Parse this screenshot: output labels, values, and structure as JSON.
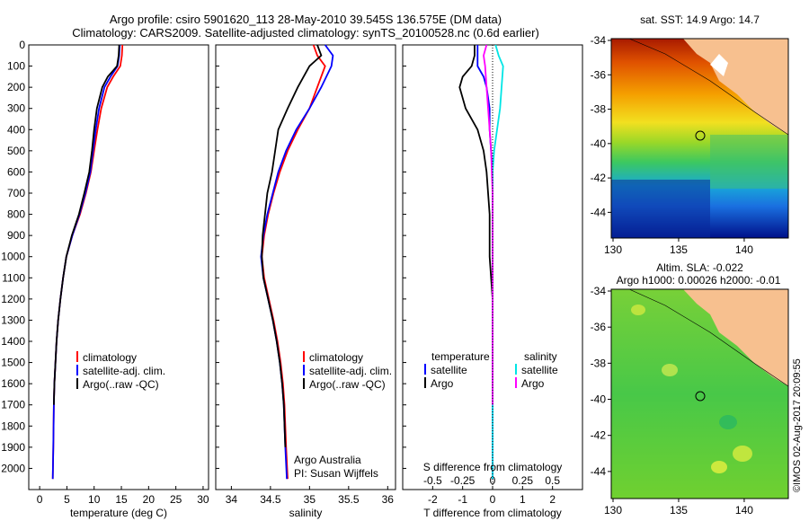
{
  "header": {
    "title_line1": "Argo profile: csiro 5901620_113 28-May-2010 39.545S 136.575E (DM data)",
    "title_line2": "Climatology: CARS2009. Satellite-adjusted climatology: synTS_20100528.nc (0.6d earlier)"
  },
  "colors": {
    "climatology": "#ff0000",
    "satellite": "#0000ff",
    "argo": "#000000",
    "sal_satellite": "#00e5e5",
    "sal_argo": "#ff00ff",
    "land": "#f7c08f"
  },
  "annotations": {
    "argo_australia": "Argo Australia",
    "pi": "PI: Susan Wijffels",
    "diff_xlabel_top": "S difference from climatology",
    "credit": "©IMOS 02-Aug-2017 20:09:55"
  },
  "legends": {
    "profile": [
      "climatology",
      "satellite-adj. clim.",
      "Argo(..raw -QC)"
    ],
    "diff_temperature_title": "temperature",
    "diff_salinity_title": "salinity",
    "diff_temperature": [
      "satellite",
      "Argo"
    ],
    "diff_salinity": [
      "satellite",
      "Argo"
    ]
  },
  "maps": {
    "sst_title": "sat. SST: 14.9 Argo: 14.7",
    "sla_title_line1": "Altim. SLA: -0.022",
    "sla_title_line2": "Argo h1000: 0.00026 h2000: -0.01",
    "lat_ticks": [
      "-34",
      "-36",
      "-38",
      "-40",
      "-42",
      "-44"
    ],
    "lon_ticks": [
      "130",
      "135",
      "140"
    ],
    "argo_position": {
      "lon": 136.575,
      "lat": -39.545
    }
  },
  "chart_data": [
    {
      "type": "line",
      "id": "temperature_profile",
      "xlabel": "temperature (deg C)",
      "ylabel": "",
      "xlim": [
        -2,
        31
      ],
      "ylim": [
        2100,
        0
      ],
      "xticks": [
        "0",
        "5",
        "10",
        "15",
        "20",
        "25",
        "30"
      ],
      "yticks": [
        "0",
        "100",
        "200",
        "300",
        "400",
        "500",
        "600",
        "700",
        "800",
        "900",
        "1000",
        "1100",
        "1200",
        "1300",
        "1400",
        "1500",
        "1600",
        "1700",
        "1800",
        "1900",
        "2000"
      ],
      "series": [
        {
          "name": "climatology",
          "x": [
            15.2,
            15.1,
            14.8,
            13.5,
            12.4,
            11.3,
            10.6,
            10.0,
            9.4,
            8.5,
            7.4,
            6.0,
            4.9,
            4.3,
            3.8,
            3.4,
            3.1,
            2.9,
            2.7,
            2.6,
            2.5,
            2.4
          ],
          "y": [
            0,
            50,
            100,
            150,
            200,
            300,
            400,
            500,
            600,
            700,
            800,
            900,
            1000,
            1100,
            1200,
            1300,
            1400,
            1500,
            1600,
            1700,
            1900,
            2050
          ]
        },
        {
          "name": "satellite-adj. clim.",
          "x": [
            14.7,
            14.6,
            14.3,
            13.0,
            11.9,
            10.9,
            10.3,
            9.8,
            9.3,
            8.4,
            7.3,
            6.0,
            4.9,
            4.3,
            3.8,
            3.4,
            3.1,
            2.9,
            2.7,
            2.6,
            2.5,
            2.4
          ],
          "y": [
            0,
            50,
            100,
            150,
            200,
            300,
            400,
            500,
            600,
            700,
            800,
            900,
            1000,
            1100,
            1200,
            1300,
            1400,
            1500,
            1600,
            1700,
            1900,
            2050
          ]
        },
        {
          "name": "Argo(..raw -QC)",
          "x": [
            14.6,
            14.5,
            14.2,
            12.5,
            11.5,
            10.5,
            10.0,
            9.6,
            9.1,
            8.2,
            7.2,
            5.9,
            4.9,
            4.3,
            3.8,
            3.4,
            3.1,
            2.9,
            2.7,
            2.6
          ],
          "y": [
            0,
            50,
            100,
            150,
            200,
            300,
            400,
            500,
            600,
            700,
            800,
            900,
            1000,
            1100,
            1200,
            1300,
            1400,
            1500,
            1600,
            1700
          ]
        }
      ]
    },
    {
      "type": "line",
      "id": "salinity_profile",
      "xlabel": "salinity",
      "ylabel": "",
      "xlim": [
        33.8,
        36.1
      ],
      "ylim": [
        2100,
        0
      ],
      "xticks": [
        "34",
        "34.5",
        "35",
        "35.5",
        "36"
      ],
      "series": [
        {
          "name": "climatology",
          "x": [
            35.05,
            35.1,
            35.2,
            35.1,
            35.0,
            34.85,
            34.72,
            34.62,
            34.54,
            34.47,
            34.42,
            34.39,
            34.42,
            34.48,
            34.54,
            34.59,
            34.63,
            34.66,
            34.68,
            34.7,
            34.72
          ],
          "y": [
            0,
            50,
            100,
            200,
            300,
            400,
            500,
            600,
            700,
            800,
            900,
            1000,
            1100,
            1200,
            1300,
            1400,
            1500,
            1600,
            1700,
            1900,
            2050
          ]
        },
        {
          "name": "satellite-adj. clim.",
          "x": [
            35.2,
            35.3,
            35.28,
            35.15,
            35.0,
            34.83,
            34.7,
            34.6,
            34.53,
            34.46,
            34.41,
            34.38,
            34.41,
            34.47,
            34.53,
            34.58,
            34.62,
            34.65,
            34.67,
            34.69,
            34.71
          ],
          "y": [
            0,
            50,
            100,
            200,
            300,
            400,
            500,
            600,
            700,
            800,
            900,
            1000,
            1100,
            1200,
            1300,
            1400,
            1500,
            1600,
            1700,
            1900,
            2050
          ]
        },
        {
          "name": "Argo(..raw -QC)",
          "x": [
            35.1,
            35.15,
            35.0,
            34.85,
            34.72,
            34.6,
            34.56,
            34.52,
            34.46,
            34.43,
            34.4,
            34.39,
            34.41,
            34.47,
            34.53,
            34.58,
            34.62,
            34.65,
            34.67,
            34.69
          ],
          "y": [
            0,
            50,
            100,
            200,
            300,
            400,
            500,
            600,
            700,
            800,
            900,
            1000,
            1100,
            1200,
            1300,
            1400,
            1500,
            1600,
            1700,
            1900
          ]
        }
      ]
    },
    {
      "type": "line",
      "id": "difference_profile",
      "xlabel": "T difference from climatology",
      "xlabel_top": "S difference from climatology",
      "xlim": [
        -3,
        3
      ],
      "ylim": [
        2100,
        0
      ],
      "xticks": [
        "-2",
        "-1",
        "0",
        "1",
        "2"
      ],
      "xticks_top": [
        "-0.5",
        "-0.25",
        "0",
        "0.25",
        "0.5"
      ],
      "series": [
        {
          "name": "temperature satellite",
          "x": [
            -0.5,
            -0.5,
            -0.5,
            -0.3,
            -0.2,
            -0.1,
            -0.1,
            -0.05,
            0,
            0,
            0,
            0,
            0,
            0
          ],
          "y": [
            0,
            50,
            100,
            150,
            200,
            300,
            400,
            500,
            600,
            700,
            800,
            1000,
            1500,
            2050
          ]
        },
        {
          "name": "temperature Argo",
          "x": [
            -0.6,
            -0.6,
            -0.7,
            -1.0,
            -1.1,
            -0.9,
            -0.5,
            -0.3,
            -0.2,
            -0.1,
            -0.1,
            0,
            0
          ],
          "y": [
            0,
            50,
            100,
            150,
            200,
            300,
            400,
            500,
            600,
            800,
            1000,
            1200,
            1700
          ]
        },
        {
          "name": "salinity satellite",
          "x": [
            0.1,
            0.2,
            0.35,
            0.3,
            0.25,
            0.15,
            0.05,
            0,
            0,
            0,
            0
          ],
          "y": [
            0,
            50,
            100,
            200,
            300,
            400,
            500,
            600,
            800,
            1500,
            2050
          ]
        },
        {
          "name": "salinity Argo",
          "x": [
            -0.2,
            -0.3,
            -0.25,
            -0.2,
            -0.15,
            -0.1,
            -0.05,
            0,
            0
          ],
          "y": [
            0,
            50,
            100,
            200,
            300,
            400,
            500,
            700,
            1700
          ]
        }
      ]
    }
  ]
}
